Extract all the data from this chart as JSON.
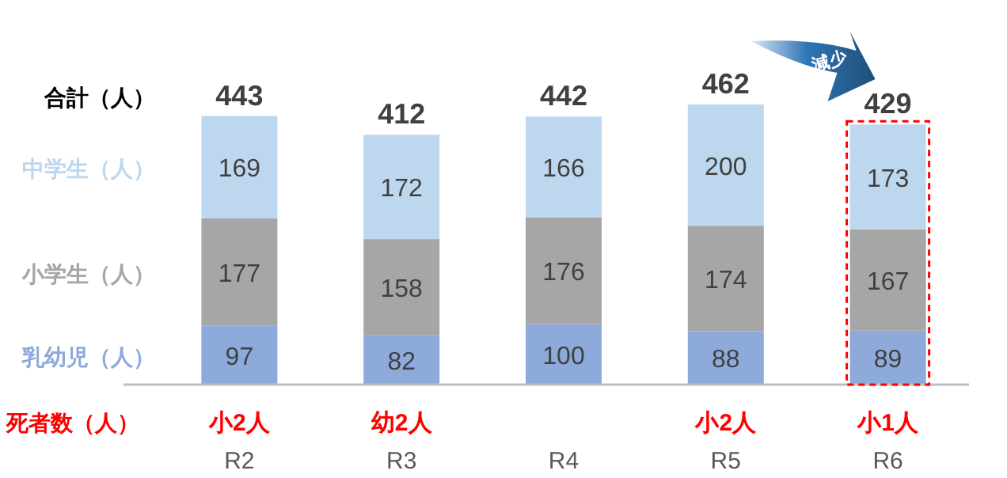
{
  "chart_data": {
    "type": "bar",
    "stacked": true,
    "data_labels": true,
    "categories": [
      "R2",
      "R3",
      "R4",
      "R5",
      "R6"
    ],
    "series": [
      {
        "name": "乳幼児（人）",
        "color": "#8eaadb",
        "values": [
          97,
          82,
          100,
          88,
          89
        ]
      },
      {
        "name": "小学生（人）",
        "color": "#a6a6a6",
        "values": [
          177,
          158,
          176,
          174,
          167
        ]
      },
      {
        "name": "中学生（人）",
        "color": "#bdd7ee",
        "values": [
          169,
          172,
          166,
          200,
          173
        ]
      }
    ],
    "totals": [
      "443",
      "412",
      "442",
      "462",
      "429"
    ],
    "annotations": [
      "合計（人）",
      "死者数（人）",
      "小2人",
      "幼2人",
      "小2人",
      "小1人",
      "減少"
    ]
  }
}
